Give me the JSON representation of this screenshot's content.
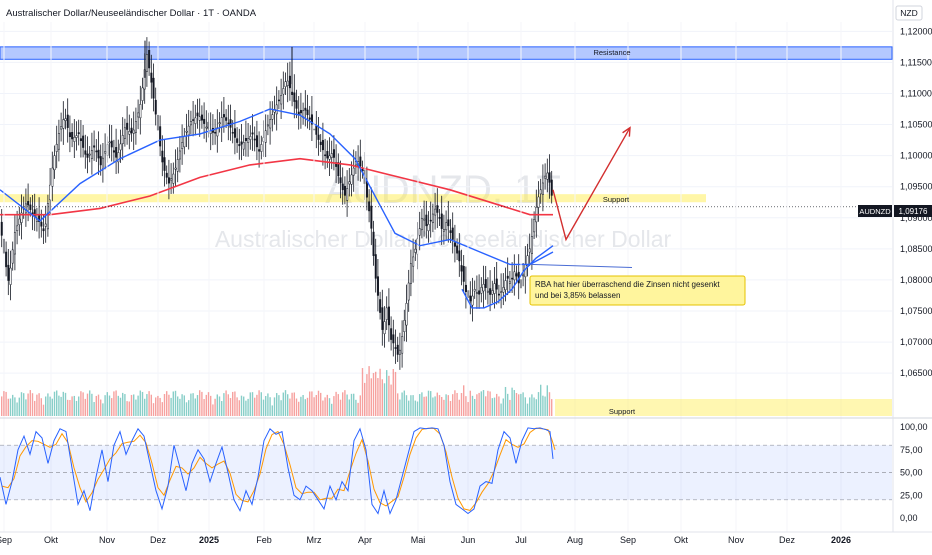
{
  "header": {
    "title": "Australischer Dollar/Neuseeländischer Dollar · 1T · OANDA",
    "currency_badge": "NZD"
  },
  "watermark": {
    "symbol": "AUDNZD, 1T",
    "name": "Australischer Dollar/Neuseeländischer Dollar"
  },
  "colors": {
    "up": "#131722",
    "down": "#131722",
    "ma_fast": "#2962ff",
    "ma_slow": "#f23645",
    "resistance_fill": "#2962ff",
    "support_fill": "#ffeb3b",
    "volume_up": "#26a69a",
    "volume_down": "#ef5350",
    "stoch_k": "#2962ff",
    "stoch_d": "#ff9800",
    "stoch_band": "#2962ff",
    "arrow": "#d32f2f",
    "price_label_bg": "#131722"
  },
  "annotations": {
    "resistance_label": "Resistance",
    "support_label": "Support",
    "support_lower_label": "Support",
    "note_text": "RBA hat hier überraschend die Zinsen nicht gesenkt und bei 3,85% belassen"
  },
  "price_label": {
    "symbol": "AUDNZD",
    "value": "1,09176"
  },
  "chart_data": [
    {
      "type": "candlestick",
      "x_tick_labels": [
        "Sep",
        "Okt",
        "Nov",
        "Dez",
        "2025",
        "Feb",
        "Mrz",
        "Apr",
        "Mai",
        "Jun",
        "Jul",
        "Aug",
        "Sep",
        "Okt",
        "Nov",
        "Dez",
        "2026"
      ],
      "y_tick_labels": [
        "1,06500",
        "1,07000",
        "1,07500",
        "1,08000",
        "1,08500",
        "1,09000",
        "1,09500",
        "1,10000",
        "1,10500",
        "1,11000",
        "1,11500",
        "1,12000"
      ],
      "ylim": [
        1.061,
        1.1215
      ],
      "last_price": 1.09176,
      "close_path": [
        [
          0,
          1.0885
        ],
        [
          3,
          1.0845
        ],
        [
          8,
          1.0795
        ],
        [
          14,
          1.0875
        ],
        [
          20,
          1.0905
        ],
        [
          26,
          1.0925
        ],
        [
          32,
          1.0905
        ],
        [
          38,
          1.0895
        ],
        [
          44,
          1.0875
        ],
        [
          48,
          1.0935
        ],
        [
          52,
          1.0985
        ],
        [
          58,
          1.1035
        ],
        [
          64,
          1.1065
        ],
        [
          70,
          1.1025
        ],
        [
          78,
          1.1035
        ],
        [
          86,
          1.0995
        ],
        [
          94,
          1.1015
        ],
        [
          100,
          1.0985
        ],
        [
          108,
          1.1025
        ],
        [
          116,
          1.0995
        ],
        [
          124,
          1.1045
        ],
        [
          132,
          1.1035
        ],
        [
          140,
          1.1085
        ],
        [
          146,
          1.1165
        ],
        [
          150,
          1.1125
        ],
        [
          156,
          1.1055
        ],
        [
          162,
          1.0985
        ],
        [
          168,
          1.0955
        ],
        [
          174,
          1.0975
        ],
        [
          182,
          1.1025
        ],
        [
          190,
          1.1055
        ],
        [
          198,
          1.1065
        ],
        [
          206,
          1.1045
        ],
        [
          214,
          1.1035
        ],
        [
          222,
          1.1065
        ],
        [
          230,
          1.1045
        ],
        [
          238,
          1.1015
        ],
        [
          246,
          1.1025
        ],
        [
          252,
          1.1035
        ],
        [
          258,
          1.1005
        ],
        [
          266,
          1.1045
        ],
        [
          274,
          1.1075
        ],
        [
          280,
          1.1095
        ],
        [
          286,
          1.1125
        ],
        [
          292,
          1.1095
        ],
        [
          298,
          1.1065
        ],
        [
          304,
          1.1075
        ],
        [
          310,
          1.1055
        ],
        [
          318,
          1.1025
        ],
        [
          326,
          1.0995
        ],
        [
          332,
          1.1005
        ],
        [
          338,
          1.0965
        ],
        [
          344,
          1.0935
        ],
        [
          350,
          1.0965
        ],
        [
          356,
          1.0995
        ],
        [
          362,
          1.0975
        ],
        [
          366,
          1.0935
        ],
        [
          370,
          1.0895
        ],
        [
          374,
          1.0815
        ],
        [
          378,
          1.0765
        ],
        [
          382,
          1.0715
        ],
        [
          386,
          1.0755
        ],
        [
          390,
          1.0705
        ],
        [
          394,
          1.0695
        ],
        [
          398,
          1.0675
        ],
        [
          402,
          1.0715
        ],
        [
          406,
          1.0765
        ],
        [
          410,
          1.0825
        ],
        [
          414,
          1.0845
        ],
        [
          418,
          1.0875
        ],
        [
          422,
          1.0905
        ],
        [
          426,
          1.0885
        ],
        [
          430,
          1.0895
        ],
        [
          434,
          1.0915
        ],
        [
          438,
          1.0905
        ],
        [
          442,
          1.0875
        ],
        [
          446,
          1.0895
        ],
        [
          450,
          1.0875
        ],
        [
          454,
          1.0855
        ],
        [
          458,
          1.0835
        ],
        [
          462,
          1.0805
        ],
        [
          466,
          1.0775
        ],
        [
          470,
          1.0765
        ],
        [
          474,
          1.0785
        ],
        [
          478,
          1.0775
        ],
        [
          482,
          1.0795
        ],
        [
          486,
          1.0785
        ],
        [
          490,
          1.0775
        ],
        [
          494,
          1.0795
        ],
        [
          498,
          1.0775
        ],
        [
          502,
          1.0785
        ],
        [
          506,
          1.0805
        ],
        [
          510,
          1.0795
        ],
        [
          514,
          1.0815
        ],
        [
          518,
          1.0795
        ],
        [
          522,
          1.0805
        ],
        [
          526,
          1.0835
        ],
        [
          530,
          1.0855
        ],
        [
          534,
          1.0905
        ],
        [
          538,
          1.0935
        ],
        [
          542,
          1.0955
        ],
        [
          546,
          1.0975
        ],
        [
          548,
          1.0965
        ],
        [
          550,
          1.0945
        ],
        [
          553,
          1.0918
        ]
      ],
      "ma_fast_path": [
        [
          0,
          1.0945
        ],
        [
          40,
          1.0895
        ],
        [
          80,
          1.0955
        ],
        [
          120,
          1.0995
        ],
        [
          160,
          1.1025
        ],
        [
          200,
          1.1035
        ],
        [
          240,
          1.1055
        ],
        [
          270,
          1.1075
        ],
        [
          300,
          1.1065
        ],
        [
          330,
          1.1035
        ],
        [
          355,
          1.0995
        ],
        [
          375,
          1.0935
        ],
        [
          395,
          1.0875
        ],
        [
          420,
          1.0855
        ],
        [
          450,
          1.0865
        ],
        [
          480,
          1.0845
        ],
        [
          510,
          1.0825
        ],
        [
          530,
          1.0825
        ],
        [
          553,
          1.0845
        ]
      ],
      "ma_slow_path": [
        [
          0,
          1.0905
        ],
        [
          50,
          1.0905
        ],
        [
          100,
          1.0915
        ],
        [
          150,
          1.0935
        ],
        [
          200,
          1.0965
        ],
        [
          250,
          1.0985
        ],
        [
          300,
          1.0995
        ],
        [
          350,
          1.0985
        ],
        [
          400,
          1.0965
        ],
        [
          450,
          1.0945
        ],
        [
          500,
          1.092
        ],
        [
          530,
          1.0905
        ],
        [
          553,
          1.0905
        ]
      ],
      "resistance_zone": [
        1.1155,
        1.1175
      ],
      "support_zone": [
        1.0925,
        1.0938
      ],
      "projection_arrow": [
        [
          553,
          1.0945
        ],
        [
          566,
          1.0865
        ],
        [
          630,
          1.1045
        ]
      ],
      "projection_curve": [
        [
          462,
          1.0785
        ],
        [
          472,
          1.0755
        ],
        [
          484,
          1.0755
        ],
        [
          498,
          1.0765
        ],
        [
          512,
          1.0785
        ],
        [
          524,
          1.0815
        ],
        [
          536,
          1.0835
        ],
        [
          553,
          1.0855
        ]
      ],
      "note_line": [
        [
          530,
          1.0825
        ],
        [
          632,
          1.082
        ]
      ]
    },
    {
      "type": "bar",
      "series": "volume",
      "support_label": "Support"
    },
    {
      "type": "line",
      "series": "stochastic",
      "y_tick_labels": [
        "0,00",
        "25,00",
        "50,00",
        "75,00",
        "100,00"
      ],
      "ylim": [
        0,
        100
      ],
      "band": [
        20,
        80
      ],
      "k_path": [
        [
          0,
          45
        ],
        [
          6,
          15
        ],
        [
          12,
          40
        ],
        [
          18,
          75
        ],
        [
          24,
          90
        ],
        [
          30,
          70
        ],
        [
          36,
          95
        ],
        [
          42,
          88
        ],
        [
          48,
          60
        ],
        [
          54,
          85
        ],
        [
          60,
          98
        ],
        [
          66,
          95
        ],
        [
          72,
          55
        ],
        [
          78,
          15
        ],
        [
          84,
          30
        ],
        [
          90,
          8
        ],
        [
          96,
          45
        ],
        [
          102,
          75
        ],
        [
          108,
          40
        ],
        [
          114,
          80
        ],
        [
          120,
          95
        ],
        [
          126,
          70
        ],
        [
          132,
          85
        ],
        [
          138,
          98
        ],
        [
          144,
          90
        ],
        [
          150,
          60
        ],
        [
          156,
          30
        ],
        [
          162,
          10
        ],
        [
          168,
          35
        ],
        [
          174,
          80
        ],
        [
          180,
          55
        ],
        [
          186,
          30
        ],
        [
          192,
          60
        ],
        [
          198,
          75
        ],
        [
          204,
          65
        ],
        [
          210,
          40
        ],
        [
          216,
          60
        ],
        [
          222,
          78
        ],
        [
          228,
          50
        ],
        [
          234,
          20
        ],
        [
          240,
          8
        ],
        [
          246,
          30
        ],
        [
          252,
          15
        ],
        [
          258,
          45
        ],
        [
          264,
          85
        ],
        [
          270,
          98
        ],
        [
          276,
          92
        ],
        [
          282,
          95
        ],
        [
          288,
          55
        ],
        [
          294,
          25
        ],
        [
          300,
          20
        ],
        [
          306,
          35
        ],
        [
          312,
          30
        ],
        [
          318,
          20
        ],
        [
          324,
          10
        ],
        [
          330,
          35
        ],
        [
          336,
          20
        ],
        [
          342,
          40
        ],
        [
          348,
          30
        ],
        [
          354,
          85
        ],
        [
          360,
          98
        ],
        [
          366,
          75
        ],
        [
          372,
          15
        ],
        [
          378,
          5
        ],
        [
          384,
          30
        ],
        [
          390,
          5
        ],
        [
          396,
          20
        ],
        [
          402,
          45
        ],
        [
          408,
          70
        ],
        [
          414,
          95
        ],
        [
          420,
          99
        ],
        [
          426,
          98
        ],
        [
          432,
          99
        ],
        [
          438,
          98
        ],
        [
          444,
          80
        ],
        [
          450,
          40
        ],
        [
          456,
          15
        ],
        [
          462,
          10
        ],
        [
          468,
          5
        ],
        [
          474,
          10
        ],
        [
          480,
          35
        ],
        [
          486,
          40
        ],
        [
          492,
          38
        ],
        [
          498,
          75
        ],
        [
          504,
          95
        ],
        [
          510,
          88
        ],
        [
          516,
          60
        ],
        [
          522,
          85
        ],
        [
          528,
          99
        ],
        [
          534,
          98
        ],
        [
          540,
          99
        ],
        [
          546,
          97
        ],
        [
          550,
          95
        ],
        [
          553,
          65
        ]
      ]
    }
  ]
}
